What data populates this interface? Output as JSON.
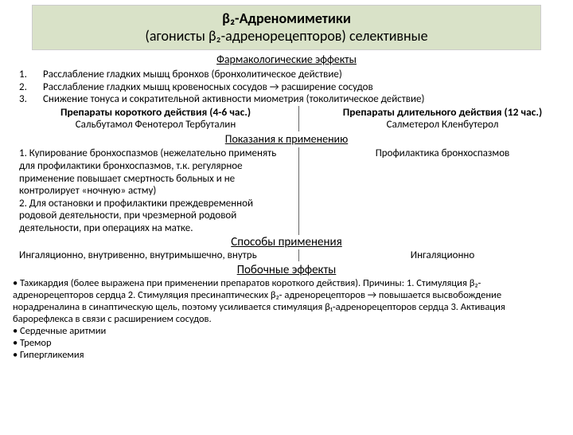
{
  "title": {
    "line1": "β₂-Адреномиметики",
    "line2_a": "(агонисты β₂-адренорецепторов)",
    "line2_b": " селективные"
  },
  "pharma": {
    "heading": "Фармакологические эффекты",
    "items": [
      {
        "n": "1.",
        "text": "Расслабление гладких мышц бронхов (бронхолитическое действие)"
      },
      {
        "n": "2.",
        "text": "Расслабление гладких мышц кровеносных сосудов → расширение сосудов"
      },
      {
        "n": "3.",
        "text": "Снижение тонуса и сократительной активности миометрия (токолитическое действие)"
      }
    ]
  },
  "prep": {
    "short_head": "Препараты короткого действия (4-6 час.)",
    "short_drugs": "Сальбутамол   Фенотерол   Тербуталин",
    "long_head": "Препараты длительного действия (12 час.)",
    "long_drugs": "Салметерол   Кленбутерол"
  },
  "indications": {
    "heading": "Показания к применению",
    "left": "1. Купирование бронхоспазмов (нежелательно применять для профилактики бронхоспазмов, т.к. регулярное применение повышает смертность больных и не контролирует «ночную» астму)\n2. Для остановки и профилактики преждевременной родовой деятельности, при чрезмерной родовой деятельности, при операциях на матке.",
    "right": "Профилактика бронхоспазмов"
  },
  "methods": {
    "heading": "Способы применения",
    "left": "Ингаляционно, внутривенно, внутримышечно, внутрь",
    "right": "Ингаляционно"
  },
  "side": {
    "heading": "Побочные эффекты",
    "items": [
      "• Тахикардия (более выражена при применении препаратов короткого действия). Причины: 1. Стимуляция β₂-адренорецепторов сердца 2. Стимуляция пресинаптических β₂- адренорецепторов → повышается высвобождение норадреналина в синаптическую щель, поэтому усиливается стимуляция β₁-адренорецепторов сердца 3. Активация барорефлекса в связи с расширением сосудов.",
      "• Сердечные аритмии",
      "• Тремор",
      "• Гипергликемия"
    ]
  }
}
